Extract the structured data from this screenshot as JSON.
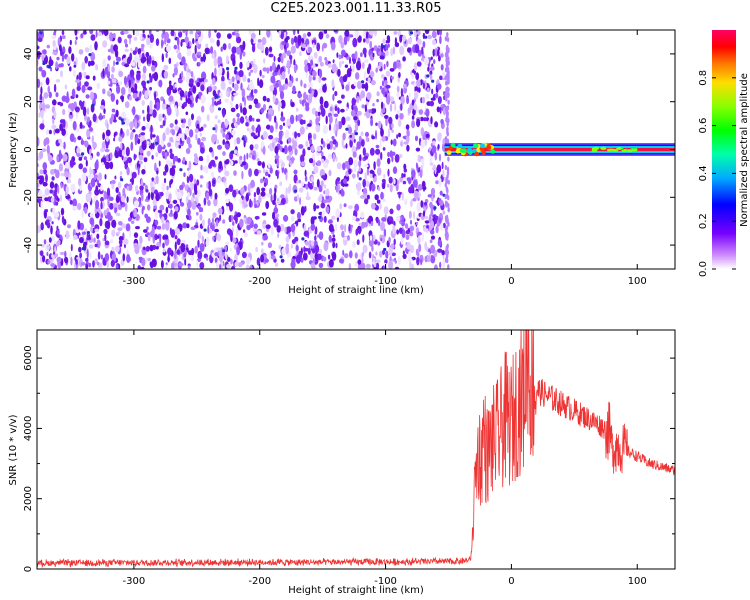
{
  "title": "C2E5.2023.001.11.33.R05",
  "colors": {
    "snr_line": "#ee3333",
    "noise_purple": "#7722ee",
    "band_core": "#ee1144"
  },
  "chart_data": [
    {
      "type": "heatmap",
      "title": "C2E5.2023.001.11.33.R05",
      "xlabel": "Height of straight line (km)",
      "ylabel": "Frequency (Hz)",
      "xlim": [
        -377,
        130
      ],
      "ylim": [
        -50,
        50
      ],
      "xticks": [
        -300,
        -200,
        -100,
        0,
        100
      ],
      "yticks": [
        -40,
        -20,
        0,
        20,
        40
      ],
      "noise_region_x": [
        -377,
        -53
      ],
      "signal_band": {
        "frequency_hz": 0,
        "start_km": -53,
        "end_km": 130,
        "peak_amplitude": 0.95
      },
      "colorbar": {
        "label": "Normalized spectral amplitude",
        "range": [
          0,
          1
        ],
        "ticks": [
          0.0,
          0.2,
          0.4,
          0.6,
          0.8
        ]
      }
    },
    {
      "type": "line",
      "xlabel": "Height of straight line (km)",
      "ylabel": "SNR (10 * v/v)",
      "xlim": [
        -377,
        130
      ],
      "ylim": [
        0,
        6800
      ],
      "xticks": [
        -300,
        -200,
        -100,
        0,
        100
      ],
      "yticks": [
        0,
        2000,
        4000,
        6000
      ],
      "series": [
        {
          "x": [
            -377,
            -300,
            -200,
            -100,
            -40,
            -33,
            -31,
            -29,
            -26,
            -24,
            -22,
            -20,
            -15,
            -10,
            -5,
            0,
            5,
            10,
            13,
            15,
            18,
            20,
            25,
            30,
            40,
            50,
            60,
            70,
            78,
            80,
            82,
            85,
            90,
            100,
            110,
            120,
            130
          ],
          "values": [
            170,
            180,
            190,
            200,
            220,
            250,
            800,
            2500,
            3400,
            3000,
            4000,
            3200,
            3600,
            3800,
            4300,
            4100,
            4700,
            5000,
            6700,
            5200,
            5300,
            5100,
            5000,
            4900,
            4700,
            4500,
            4300,
            4100,
            3900,
            3400,
            3500,
            3500,
            3400,
            3200,
            3000,
            2900,
            2800
          ]
        }
      ]
    }
  ]
}
